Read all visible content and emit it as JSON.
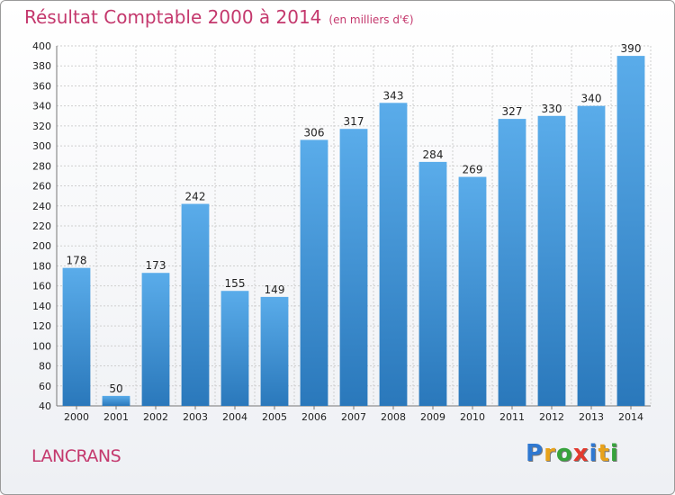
{
  "header": {
    "title": "Résultat Comptable 2000 à 2014",
    "subtitle": "(en milliers d'€)"
  },
  "footer": {
    "place": "LANCRANS",
    "logo": [
      "P",
      "r",
      "o",
      "x",
      "i",
      "t",
      "i"
    ],
    "logo_colors": [
      "#2f78d1",
      "#e8a21a",
      "#37a33c",
      "#e23a2e",
      "#2f78d1",
      "#e8a21a",
      "#37a33c"
    ]
  },
  "colors": {
    "bar_top": "#5aacea",
    "bar_bottom": "#2a78bb",
    "title": "#c4386d"
  },
  "chart_data": {
    "type": "bar",
    "title": "Résultat Comptable 2000 à 2014",
    "categories": [
      "2000",
      "2001",
      "2002",
      "2003",
      "2004",
      "2005",
      "2006",
      "2007",
      "2008",
      "2009",
      "2010",
      "2011",
      "2012",
      "2013",
      "2014"
    ],
    "values": [
      178,
      50,
      173,
      242,
      155,
      149,
      306,
      317,
      343,
      284,
      269,
      327,
      330,
      340,
      390
    ],
    "ylim": [
      40,
      400
    ],
    "yticks": [
      40,
      60,
      80,
      100,
      120,
      140,
      160,
      180,
      200,
      220,
      240,
      260,
      280,
      300,
      320,
      340,
      360,
      380,
      400
    ],
    "grid": true
  }
}
